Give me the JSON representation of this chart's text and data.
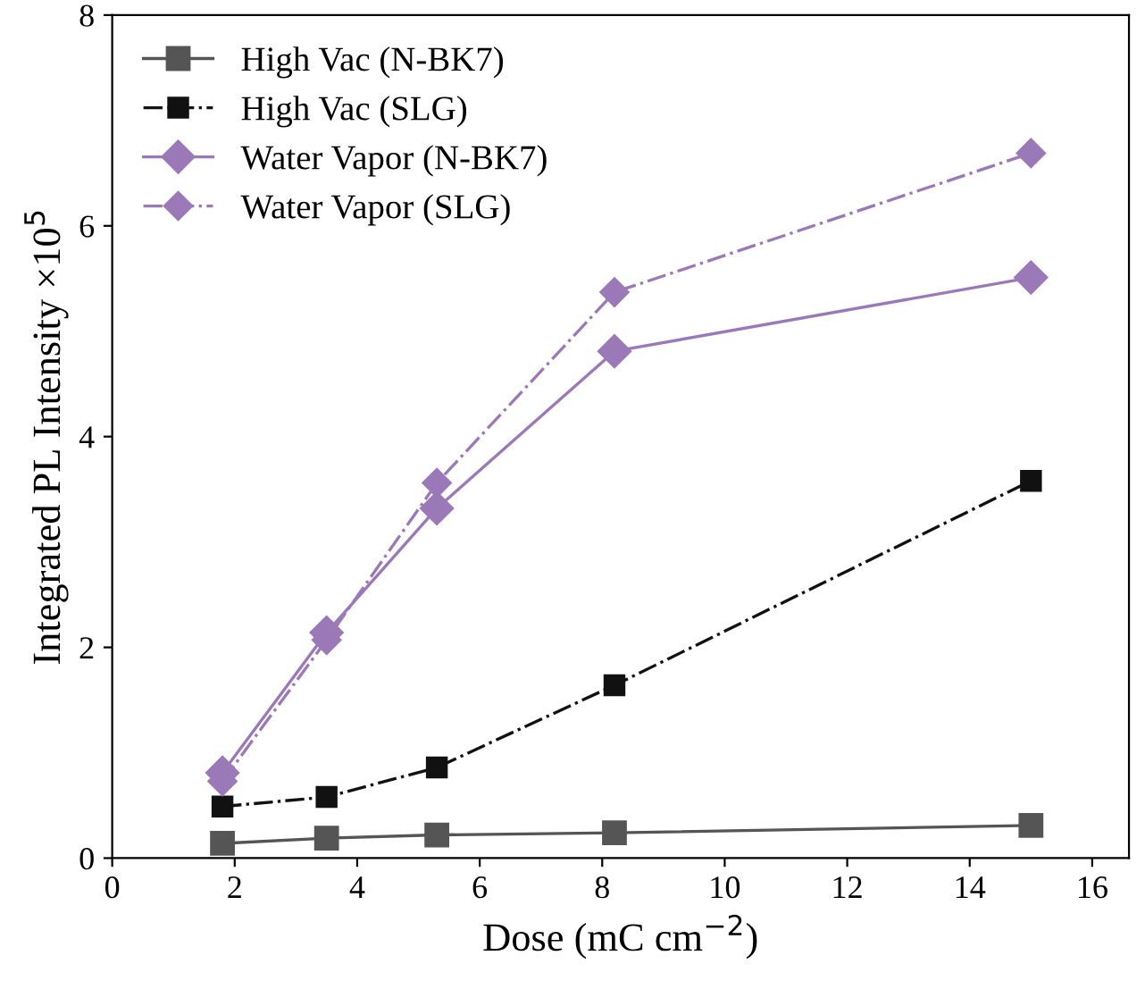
{
  "chart_data": {
    "type": "line",
    "xlabel": "Dose (mC cm$^{−2}$)",
    "ylabel": "Integrated PL Intensity ×10$^{5}$",
    "x": [
      1.8,
      3.5,
      5.3,
      8.2,
      15
    ],
    "series": [
      {
        "name": "High Vac (N-BK7)",
        "color": "#555555",
        "marker": "square",
        "line_style": "solid",
        "values": [
          0.14,
          0.19,
          0.22,
          0.24,
          0.31
        ]
      },
      {
        "name": "High Vac (SLG)",
        "color": "#111111",
        "marker": "square",
        "line_style": "dashdot",
        "values": [
          0.49,
          0.58,
          0.86,
          1.64,
          3.58
        ]
      },
      {
        "name": "Water Vapor (N-BK7)",
        "color": "#9b79b8",
        "marker": "diamond",
        "line_style": "solid",
        "values": [
          0.81,
          2.14,
          3.32,
          4.81,
          5.51
        ]
      },
      {
        "name": "Water Vapor (SLG)",
        "color": "#9b79b8",
        "marker": "diamond",
        "line_style": "dashdot",
        "values": [
          0.73,
          2.07,
          3.56,
          5.37,
          6.69
        ]
      }
    ],
    "xlim": [
      0,
      16.6
    ],
    "xticks": [
      0,
      2,
      4,
      6,
      8,
      10,
      12,
      14,
      16
    ],
    "ylim": [
      0,
      8
    ],
    "yticks": [
      0,
      2,
      4,
      6,
      8
    ],
    "grid": false,
    "legend": "top left"
  }
}
